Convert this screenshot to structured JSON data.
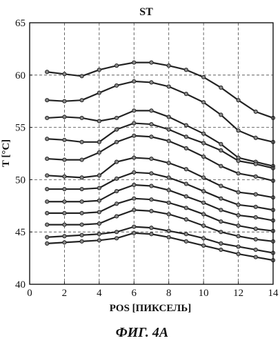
{
  "chart_data": {
    "type": "line",
    "title": "ST",
    "xlabel": "POS [ПИКСЕЛЬ]",
    "ylabel": "T [°C]",
    "caption": "ФИГ. 4А",
    "xlim": [
      0,
      14
    ],
    "ylim": [
      40,
      65
    ],
    "xticks": [
      0,
      2,
      4,
      6,
      8,
      10,
      12,
      14
    ],
    "yticks": [
      40,
      45,
      50,
      55,
      60,
      65
    ],
    "grid": true,
    "grid_style": "dashed",
    "line_color": "#222222",
    "marker": "circle",
    "x": [
      1,
      2,
      3,
      4,
      5,
      6,
      7,
      8,
      9,
      10,
      11,
      12,
      13,
      14
    ],
    "series": [
      {
        "values": [
          60.3,
          60.1,
          59.9,
          60.5,
          60.9,
          61.2,
          61.2,
          60.9,
          60.5,
          59.8,
          58.8,
          57.6,
          56.5,
          55.9
        ]
      },
      {
        "values": [
          57.6,
          57.5,
          57.6,
          58.3,
          59.0,
          59.4,
          59.3,
          58.9,
          58.2,
          57.4,
          56.2,
          54.7,
          54.0,
          53.6
        ]
      },
      {
        "values": [
          55.9,
          56.0,
          55.9,
          55.6,
          55.9,
          56.6,
          56.6,
          56.0,
          55.2,
          54.4,
          53.4,
          52.1,
          51.7,
          51.3
        ]
      },
      {
        "values": [
          53.9,
          53.8,
          53.6,
          53.6,
          54.8,
          55.4,
          55.3,
          54.8,
          54.1,
          53.5,
          52.8,
          51.8,
          51.5,
          51.1
        ]
      },
      {
        "values": [
          52.0,
          51.9,
          51.9,
          52.6,
          53.6,
          54.2,
          54.1,
          53.7,
          53.0,
          52.2,
          51.3,
          50.6,
          50.3,
          49.9
        ]
      },
      {
        "values": [
          50.4,
          50.3,
          50.2,
          50.4,
          51.7,
          52.1,
          52.0,
          51.6,
          51.0,
          50.2,
          49.4,
          48.8,
          48.6,
          48.3
        ]
      },
      {
        "values": [
          49.1,
          49.1,
          49.1,
          49.2,
          50.1,
          50.7,
          50.6,
          50.2,
          49.6,
          48.9,
          48.2,
          47.6,
          47.4,
          47.1
        ]
      },
      {
        "values": [
          47.9,
          47.9,
          47.9,
          48.0,
          48.9,
          49.5,
          49.4,
          49.0,
          48.4,
          47.8,
          47.1,
          46.6,
          46.4,
          46.1
        ]
      },
      {
        "values": [
          46.8,
          46.8,
          46.8,
          46.9,
          47.7,
          48.2,
          48.1,
          47.8,
          47.3,
          46.7,
          46.0,
          45.6,
          45.3,
          45.1
        ]
      },
      {
        "values": [
          45.7,
          45.7,
          45.7,
          45.8,
          46.5,
          47.1,
          47.0,
          46.7,
          46.2,
          45.6,
          45.0,
          44.6,
          44.3,
          44.1
        ]
      },
      {
        "values": [
          44.5,
          44.6,
          44.7,
          44.8,
          45.0,
          45.5,
          45.4,
          45.1,
          44.8,
          44.4,
          43.9,
          43.6,
          43.3,
          43.0
        ]
      },
      {
        "values": [
          43.9,
          44.0,
          44.1,
          44.2,
          44.4,
          44.9,
          44.8,
          44.5,
          44.1,
          43.7,
          43.3,
          42.9,
          42.6,
          42.3
        ]
      }
    ]
  }
}
